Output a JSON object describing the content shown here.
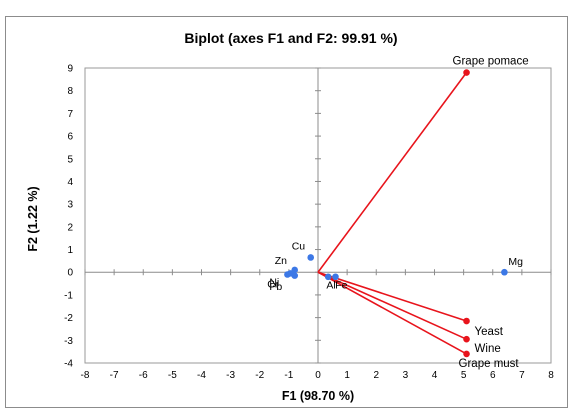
{
  "chart_data": {
    "type": "scatter",
    "title": "Biplot (axes F1 and F2: 99.91 %)",
    "xlabel": "F1 (98.70 %)",
    "ylabel": "F2 (1.22 %)",
    "xlim": [
      -8,
      8
    ],
    "ylim": [
      -4,
      9
    ],
    "xticks": [
      "-8",
      "-7",
      "-6",
      "-5",
      "-4",
      "-3",
      "-2",
      "-1",
      "0",
      "1",
      "2",
      "3",
      "4",
      "5",
      "6",
      "7",
      "8"
    ],
    "yticks": [
      "-4",
      "-3",
      "-2",
      "-1",
      "0",
      "1",
      "2",
      "3",
      "4",
      "5",
      "6",
      "7",
      "8",
      "9"
    ],
    "grid": false,
    "legend": "none",
    "colors": {
      "variables": "#e8141c",
      "observations": "#3c78e6"
    },
    "variables": [
      {
        "label": "Grape pomace",
        "x": 5.1,
        "y": 8.8
      },
      {
        "label": "Yeast",
        "x": 5.1,
        "y": -2.15
      },
      {
        "label": "Wine",
        "x": 5.1,
        "y": -2.95
      },
      {
        "label": "Grape must",
        "x": 5.1,
        "y": -3.6
      }
    ],
    "observations": [
      {
        "label": "Mg",
        "x": 6.4,
        "y": 0.0
      },
      {
        "label": "Cu",
        "x": -0.25,
        "y": 0.65
      },
      {
        "label": "Zn",
        "x": -0.8,
        "y": 0.1
      },
      {
        "label": "",
        "x": -0.95,
        "y": -0.05
      },
      {
        "label": "",
        "x": -0.8,
        "y": -0.15
      },
      {
        "label": "",
        "x": -1.05,
        "y": -0.1
      },
      {
        "label": "",
        "x": 0.35,
        "y": -0.2
      },
      {
        "label": "",
        "x": 0.6,
        "y": -0.2
      }
    ],
    "annotations": [
      {
        "text": "Al",
        "x": 0.45,
        "y": -0.55
      },
      {
        "text": "Fe",
        "x": 0.8,
        "y": -0.55
      },
      {
        "text": "Ni",
        "x": -1.5,
        "y": -0.4
      },
      {
        "text": "Cr",
        "x": -1.55,
        "y": -0.5
      },
      {
        "text": "Pb",
        "x": -1.45,
        "y": -0.6
      }
    ]
  }
}
